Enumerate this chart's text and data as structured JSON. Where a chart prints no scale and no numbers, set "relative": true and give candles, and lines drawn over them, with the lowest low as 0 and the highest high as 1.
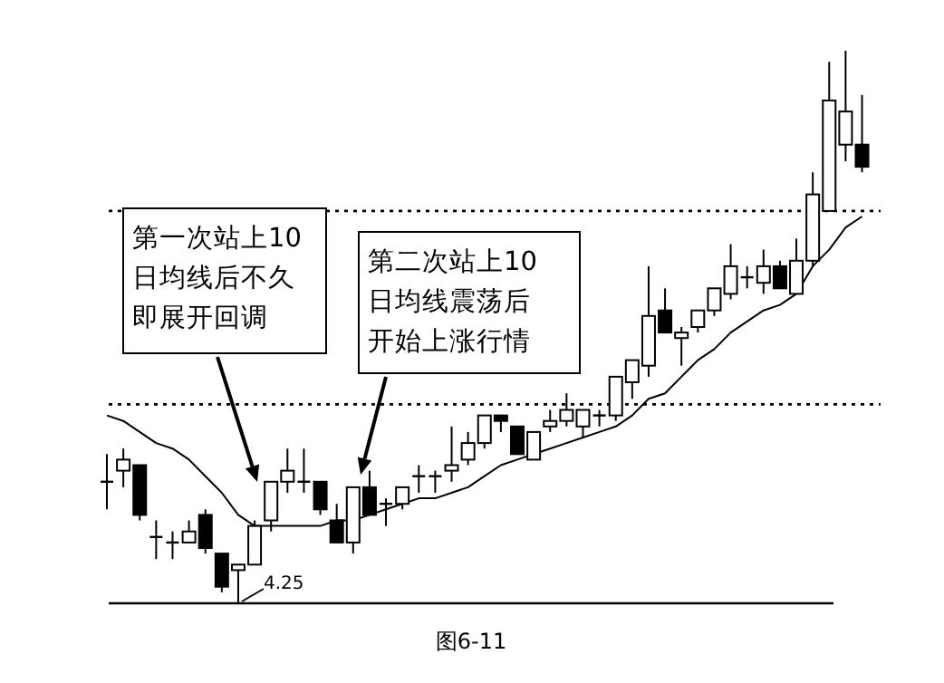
{
  "chart_data": {
    "type": "candlestick",
    "relative": true,
    "categories": [
      null,
      null,
      null,
      null,
      null,
      null,
      null,
      null,
      null,
      null,
      null,
      null,
      null,
      null,
      null,
      null,
      null,
      null,
      null,
      null,
      null,
      null,
      null,
      null,
      null,
      null,
      null,
      null,
      null,
      null,
      null,
      null,
      null,
      null,
      null,
      null,
      null,
      null,
      null,
      null,
      null,
      null,
      null,
      null,
      null,
      null,
      null
    ],
    "ohlc": [
      [
        0.22,
        0.27,
        0.17,
        0.22
      ],
      [
        0.24,
        0.28,
        0.21,
        0.26
      ],
      [
        0.25,
        0.25,
        0.15,
        0.16
      ],
      [
        0.12,
        0.15,
        0.08,
        0.12
      ],
      [
        0.11,
        0.13,
        0.08,
        0.11
      ],
      [
        0.11,
        0.15,
        0.11,
        0.13
      ],
      [
        0.16,
        0.17,
        0.09,
        0.1
      ],
      [
        0.09,
        0.09,
        0.02,
        0.03
      ],
      [
        0.06,
        0.07,
        0,
        0.07
      ],
      [
        0.07,
        0.15,
        0.07,
        0.14
      ],
      [
        0.15,
        0.22,
        0.13,
        0.22
      ],
      [
        0.22,
        0.28,
        0.2,
        0.24
      ],
      [
        0.22,
        0.28,
        0.2,
        0.22
      ],
      [
        0.22,
        0.22,
        0.16,
        0.17
      ],
      [
        0.15,
        0.18,
        0.11,
        0.11
      ],
      [
        0.11,
        0.21,
        0.09,
        0.21
      ],
      [
        0.21,
        0.24,
        0.16,
        0.16
      ],
      [
        0.18,
        0.19,
        0.14,
        0.18
      ],
      [
        0.18,
        0.21,
        0.17,
        0.21
      ],
      [
        0.23,
        0.25,
        0.2,
        0.23
      ],
      [
        0.23,
        0.24,
        0.2,
        0.23
      ],
      [
        0.24,
        0.32,
        0.22,
        0.25
      ],
      [
        0.26,
        0.31,
        0.25,
        0.29
      ],
      [
        0.29,
        0.34,
        0.28,
        0.34
      ],
      [
        0.34,
        0.34,
        0.31,
        0.33
      ],
      [
        0.32,
        0.32,
        0.27,
        0.27
      ],
      [
        0.26,
        0.31,
        0.26,
        0.31
      ],
      [
        0.32,
        0.35,
        0.31,
        0.33
      ],
      [
        0.33,
        0.38,
        0.32,
        0.35
      ],
      [
        0.32,
        0.35,
        0.3,
        0.35
      ],
      [
        0.34,
        0.35,
        0.32,
        0.34
      ],
      [
        0.34,
        0.41,
        0.33,
        0.41
      ],
      [
        0.4,
        0.44,
        0.37,
        0.44
      ],
      [
        0.43,
        0.61,
        0.41,
        0.52
      ],
      [
        0.53,
        0.57,
        0.49,
        0.49
      ],
      [
        0.48,
        0.5,
        0.43,
        0.49
      ],
      [
        0.5,
        0.53,
        0.49,
        0.53
      ],
      [
        0.53,
        0.57,
        0.52,
        0.57
      ],
      [
        0.56,
        0.65,
        0.55,
        0.61
      ],
      [
        0.59,
        0.61,
        0.57,
        0.59
      ],
      [
        0.58,
        0.64,
        0.56,
        0.61
      ],
      [
        0.61,
        0.62,
        0.57,
        0.57
      ],
      [
        0.56,
        0.66,
        0.56,
        0.62
      ],
      [
        0.62,
        0.78,
        0.61,
        0.74
      ],
      [
        0.71,
        0.98,
        0.71,
        0.91
      ],
      [
        0.83,
        1,
        0.8,
        0.89
      ],
      [
        0.83,
        0.92,
        0.78,
        0.79
      ]
    ],
    "series": [
      {
        "type": "line",
        "color": "#000000",
        "values": [
          0.34,
          0.33,
          0.31,
          0.29,
          0.28,
          0.26,
          0.23,
          0.2,
          0.16,
          0.14,
          0.14,
          0.14,
          0.14,
          0.14,
          0.15,
          0.15,
          0.16,
          0.17,
          0.18,
          0.19,
          0.19,
          0.2,
          0.21,
          0.23,
          0.25,
          0.26,
          0.27,
          0.28,
          0.29,
          0.3,
          0.31,
          0.32,
          0.34,
          0.37,
          0.38,
          0.41,
          0.44,
          0.46,
          0.49,
          0.51,
          0.53,
          0.54,
          0.56,
          0.61,
          0.64,
          0.68,
          0.7
        ]
      }
    ],
    "ref_lines": [
      {
        "axis": "y",
        "value": 0,
        "line_style": "solid"
      },
      {
        "axis": "y",
        "value": 0.36,
        "line_style": "dotted"
      },
      {
        "axis": "y",
        "value": 0.71,
        "line_style": "dotted"
      }
    ],
    "annotations": [
      "第一次站上10日均线后不久即展开回调",
      "第二次站上10日均线震荡后开始上涨行情",
      "4.25",
      "图6-11"
    ]
  }
}
